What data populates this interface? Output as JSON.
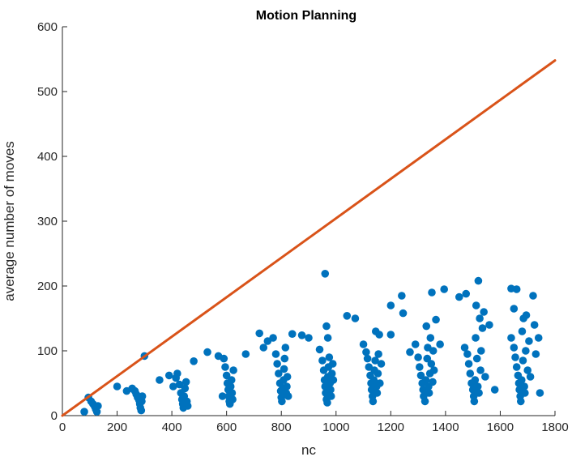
{
  "chart_data": {
    "type": "scatter",
    "title": "Motion Planning",
    "xlabel": "nc",
    "ylabel": "average number of moves",
    "xlim": [
      0,
      1800
    ],
    "ylim": [
      0,
      600
    ],
    "xticks": [
      "0",
      "200",
      "400",
      "600",
      "800",
      "1000",
      "1200",
      "1400",
      "1600",
      "1800"
    ],
    "yticks": [
      "0",
      "100",
      "200",
      "300",
      "400",
      "500",
      "600"
    ],
    "grid": false,
    "legend": "none",
    "colors": {
      "points": "#0072BD",
      "line": "#D95319",
      "axes": "#262626"
    },
    "series": [
      {
        "type": "line",
        "x": [
          0,
          1800
        ],
        "y": [
          0,
          548
        ]
      },
      {
        "type": "scatter",
        "points": [
          [
            80,
            6
          ],
          [
            95,
            28
          ],
          [
            105,
            22
          ],
          [
            112,
            18
          ],
          [
            118,
            14
          ],
          [
            122,
            10
          ],
          [
            126,
            6
          ],
          [
            130,
            15
          ],
          [
            200,
            45
          ],
          [
            235,
            38
          ],
          [
            255,
            42
          ],
          [
            265,
            38
          ],
          [
            270,
            33
          ],
          [
            275,
            28
          ],
          [
            280,
            24
          ],
          [
            283,
            18
          ],
          [
            285,
            12
          ],
          [
            288,
            8
          ],
          [
            290,
            22
          ],
          [
            292,
            30
          ],
          [
            300,
            92
          ],
          [
            355,
            55
          ],
          [
            390,
            62
          ],
          [
            405,
            45
          ],
          [
            415,
            58
          ],
          [
            420,
            65
          ],
          [
            428,
            48
          ],
          [
            433,
            35
          ],
          [
            437,
            25
          ],
          [
            440,
            18
          ],
          [
            442,
            12
          ],
          [
            445,
            30
          ],
          [
            448,
            42
          ],
          [
            452,
            52
          ],
          [
            455,
            22
          ],
          [
            458,
            15
          ],
          [
            480,
            84
          ],
          [
            530,
            98
          ],
          [
            570,
            92
          ],
          [
            585,
            30
          ],
          [
            590,
            88
          ],
          [
            595,
            75
          ],
          [
            600,
            62
          ],
          [
            603,
            50
          ],
          [
            606,
            40
          ],
          [
            608,
            30
          ],
          [
            610,
            22
          ],
          [
            612,
            18
          ],
          [
            615,
            45
          ],
          [
            618,
            55
          ],
          [
            620,
            35
          ],
          [
            622,
            25
          ],
          [
            625,
            70
          ],
          [
            670,
            95
          ],
          [
            720,
            127
          ],
          [
            735,
            105
          ],
          [
            750,
            115
          ],
          [
            770,
            120
          ],
          [
            780,
            95
          ],
          [
            785,
            80
          ],
          [
            790,
            65
          ],
          [
            795,
            50
          ],
          [
            798,
            38
          ],
          [
            800,
            28
          ],
          [
            802,
            22
          ],
          [
            805,
            42
          ],
          [
            808,
            55
          ],
          [
            810,
            72
          ],
          [
            812,
            88
          ],
          [
            815,
            105
          ],
          [
            818,
            35
          ],
          [
            820,
            45
          ],
          [
            822,
            60
          ],
          [
            825,
            30
          ],
          [
            840,
            126
          ],
          [
            875,
            124
          ],
          [
            900,
            120
          ],
          [
            940,
            102
          ],
          [
            950,
            85
          ],
          [
            955,
            70
          ],
          [
            958,
            55
          ],
          [
            960,
            45
          ],
          [
            962,
            35
          ],
          [
            965,
            25
          ],
          [
            968,
            20
          ],
          [
            970,
            60
          ],
          [
            972,
            75
          ],
          [
            975,
            90
          ],
          [
            978,
            50
          ],
          [
            980,
            40
          ],
          [
            982,
            30
          ],
          [
            985,
            65
          ],
          [
            988,
            80
          ],
          [
            990,
            55
          ],
          [
            960,
            219
          ],
          [
            965,
            138
          ],
          [
            970,
            120
          ],
          [
            1040,
            154
          ],
          [
            1070,
            150
          ],
          [
            1100,
            110
          ],
          [
            1110,
            98
          ],
          [
            1115,
            88
          ],
          [
            1120,
            75
          ],
          [
            1125,
            62
          ],
          [
            1128,
            50
          ],
          [
            1130,
            40
          ],
          [
            1133,
            30
          ],
          [
            1135,
            22
          ],
          [
            1138,
            55
          ],
          [
            1140,
            70
          ],
          [
            1143,
            85
          ],
          [
            1145,
            130
          ],
          [
            1148,
            45
          ],
          [
            1150,
            35
          ],
          [
            1153,
            65
          ],
          [
            1155,
            95
          ],
          [
            1158,
            125
          ],
          [
            1160,
            50
          ],
          [
            1165,
            80
          ],
          [
            1200,
            125
          ],
          [
            1200,
            170
          ],
          [
            1240,
            185
          ],
          [
            1245,
            158
          ],
          [
            1270,
            98
          ],
          [
            1290,
            110
          ],
          [
            1300,
            90
          ],
          [
            1305,
            75
          ],
          [
            1310,
            62
          ],
          [
            1315,
            50
          ],
          [
            1318,
            40
          ],
          [
            1320,
            30
          ],
          [
            1325,
            22
          ],
          [
            1328,
            55
          ],
          [
            1330,
            138
          ],
          [
            1333,
            88
          ],
          [
            1335,
            105
          ],
          [
            1338,
            45
          ],
          [
            1340,
            35
          ],
          [
            1343,
            65
          ],
          [
            1345,
            120
          ],
          [
            1348,
            80
          ],
          [
            1350,
            190
          ],
          [
            1353,
            52
          ],
          [
            1355,
            100
          ],
          [
            1358,
            70
          ],
          [
            1365,
            148
          ],
          [
            1380,
            110
          ],
          [
            1395,
            195
          ],
          [
            1450,
            183
          ],
          [
            1475,
            188
          ],
          [
            1470,
            105
          ],
          [
            1480,
            95
          ],
          [
            1485,
            80
          ],
          [
            1490,
            65
          ],
          [
            1495,
            50
          ],
          [
            1500,
            40
          ],
          [
            1503,
            30
          ],
          [
            1505,
            22
          ],
          [
            1508,
            55
          ],
          [
            1510,
            120
          ],
          [
            1512,
            170
          ],
          [
            1515,
            88
          ],
          [
            1518,
            45
          ],
          [
            1520,
            208
          ],
          [
            1522,
            35
          ],
          [
            1525,
            150
          ],
          [
            1528,
            70
          ],
          [
            1530,
            100
          ],
          [
            1535,
            135
          ],
          [
            1540,
            160
          ],
          [
            1545,
            60
          ],
          [
            1560,
            140
          ],
          [
            1580,
            40
          ],
          [
            1640,
            196
          ],
          [
            1660,
            195
          ],
          [
            1650,
            165
          ],
          [
            1640,
            120
          ],
          [
            1650,
            105
          ],
          [
            1655,
            90
          ],
          [
            1660,
            75
          ],
          [
            1665,
            62
          ],
          [
            1668,
            50
          ],
          [
            1670,
            40
          ],
          [
            1673,
            30
          ],
          [
            1675,
            22
          ],
          [
            1678,
            55
          ],
          [
            1680,
            130
          ],
          [
            1683,
            85
          ],
          [
            1685,
            150
          ],
          [
            1688,
            45
          ],
          [
            1690,
            35
          ],
          [
            1693,
            100
          ],
          [
            1695,
            155
          ],
          [
            1700,
            70
          ],
          [
            1705,
            115
          ],
          [
            1710,
            60
          ],
          [
            1720,
            185
          ],
          [
            1725,
            140
          ],
          [
            1730,
            95
          ],
          [
            1740,
            120
          ],
          [
            1745,
            35
          ]
        ]
      }
    ]
  }
}
